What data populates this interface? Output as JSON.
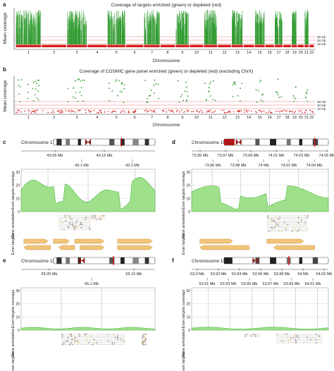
{
  "colors": {
    "enriched": "#2e9a2e",
    "depleted": "#d81e1e",
    "coverage_fill": "#9fe08a",
    "coverage_line": "#4fb844",
    "exon": "#f2c47a",
    "exon_edge": "#c8963e",
    "gene": "#9a9a9a",
    "ideogram_dark": "#111111",
    "centromere": "#8b1a1a",
    "threshold": "#d95050"
  },
  "panel_a": {
    "letter": "a",
    "title": "Coverage of targets enriched (green) or depleted (red)",
    "ylabel": "Mean coverage",
    "xlabel": "Chromosome",
    "thresholds": [
      "30 Gb",
      "20 Gb",
      "10 Gb"
    ],
    "chromosomes": [
      "1",
      "2",
      "3",
      "4",
      "5",
      "6",
      "7",
      "8",
      "9",
      "10",
      "11",
      "12",
      "13",
      "14",
      "15",
      "16",
      "17",
      "18",
      "19",
      "20",
      "21",
      "22"
    ]
  },
  "panel_b": {
    "letter": "b",
    "title": "Coverage of COSMIC gene panel enriched (green) or depleted (red) (excluding ChrX)",
    "ylabel": "Mean coverage",
    "xlabel": "Chromosome",
    "thresholds": [
      "30 Gb",
      "20 Gb",
      "10 Gb"
    ],
    "chromosomes": [
      "1",
      "2",
      "3",
      "4",
      "5",
      "6",
      "7",
      "8",
      "9",
      "10",
      "11",
      "12",
      "13",
      "14",
      "15",
      "16",
      "17",
      "18",
      "19",
      "20",
      "21",
      "22"
    ]
  },
  "panel_c": {
    "letter": "c",
    "chromosome": "Chromosome 17",
    "ticks_top": [
      "43.05 Mb",
      "43.15 Mb"
    ],
    "ticks_bottom": [
      "43.1 Mb",
      "43.2 Mb"
    ],
    "cov_ticks": [
      "30",
      "20",
      "10",
      "0"
    ],
    "cov_label": "Exon targets coverage",
    "gene_label": "Gene annotation",
    "exon_label": "Exon targets"
  },
  "panel_d": {
    "letter": "d",
    "chromosome": "Chromosome 15",
    "ticks_top": [
      "73.95 Mb",
      "73.97 Mb",
      "73.99 Mb",
      "74.01 Mb",
      "74.03 Mb",
      "74.05 Mb"
    ],
    "ticks_bottom": [
      "73.96 Mb",
      "73.98 Mb",
      "74 Mb",
      "74.02 Mb",
      "74.04 Mb"
    ],
    "cov_ticks": [
      "30",
      "20",
      "10",
      "0"
    ],
    "cov_label": "Exon targets coverage",
    "gene_label": "Gene annotation",
    "exon_label": "Exon targets"
  },
  "panel_e": {
    "letter": "e",
    "chromosome": "Chromosome 12",
    "ticks_top": [
      "65.05 Mb",
      "65.15 Mb"
    ],
    "ticks_bottom": [
      "65.1 Mb"
    ],
    "cov_ticks": [
      "30",
      "20",
      "10",
      "0"
    ],
    "cov_label": "Exon targets coverage",
    "gene_label": "Gene annotation",
    "exon_label": "Exon targets"
  },
  "panel_f": {
    "letter": "f",
    "chromosome": "Chromosome 12",
    "ticks_top": [
      "53.9 Mb",
      "53.92 Mb",
      "53.94 Mb",
      "53.96 Mb",
      "53.98 Mb",
      "54 Mb",
      "54.02 Mb"
    ],
    "ticks_bottom": [
      "53.91 Mb",
      "53.93 Mb",
      "53.95 Mb",
      "53.97 Mb",
      "53.99 Mb",
      "54.01 Mb"
    ],
    "cov_ticks": [
      "30",
      "20",
      "10",
      "0"
    ],
    "cov_label": "Exon targets coverage",
    "gene_label": "Gene annotation",
    "exon_label": "Exon targets"
  }
}
